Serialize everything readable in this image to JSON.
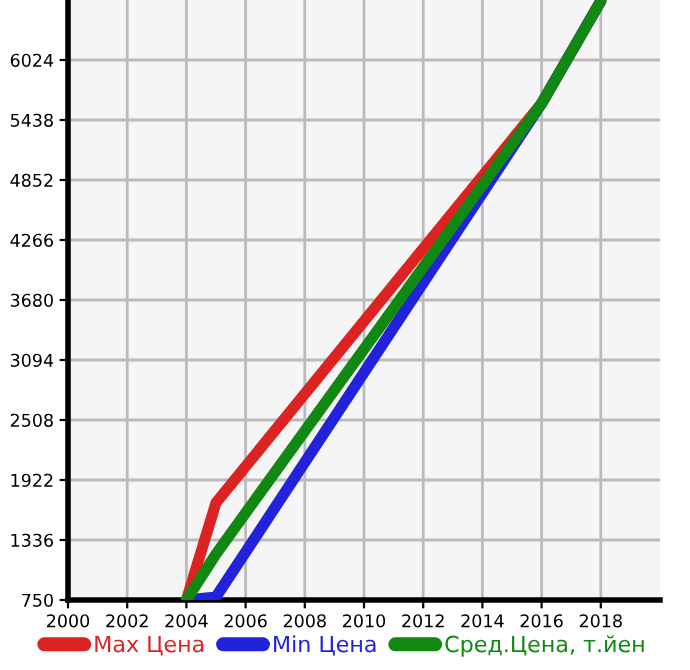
{
  "chart_data": {
    "type": "line",
    "series": [
      {
        "name": "Max Цена",
        "color": "#dd2222",
        "x": [
          2004,
          2005,
          2016,
          2018
        ],
        "values": [
          750,
          1700,
          5600,
          6600
        ]
      },
      {
        "name": "Min Цена",
        "color": "#2222dd",
        "x": [
          2004,
          2005,
          2016,
          2018
        ],
        "values": [
          750,
          780,
          5600,
          6600
        ]
      },
      {
        "name": "Сред.Цена, т.йен",
        "color": "#118811",
        "x": [
          2004,
          2005,
          2016,
          2018
        ],
        "values": [
          750,
          1200,
          5600,
          6600
        ]
      }
    ],
    "xlim": [
      2000,
      2020
    ],
    "xticks": [
      2000,
      2002,
      2004,
      2006,
      2008,
      2010,
      2012,
      2014,
      2016,
      2018
    ],
    "ylim": [
      750,
      6610
    ],
    "yticks": [
      750,
      1336,
      1922,
      2508,
      3094,
      3680,
      4266,
      4852,
      5438,
      6024
    ],
    "grid": true,
    "legend": "bottom",
    "marker": "none",
    "line_style": "solid"
  }
}
